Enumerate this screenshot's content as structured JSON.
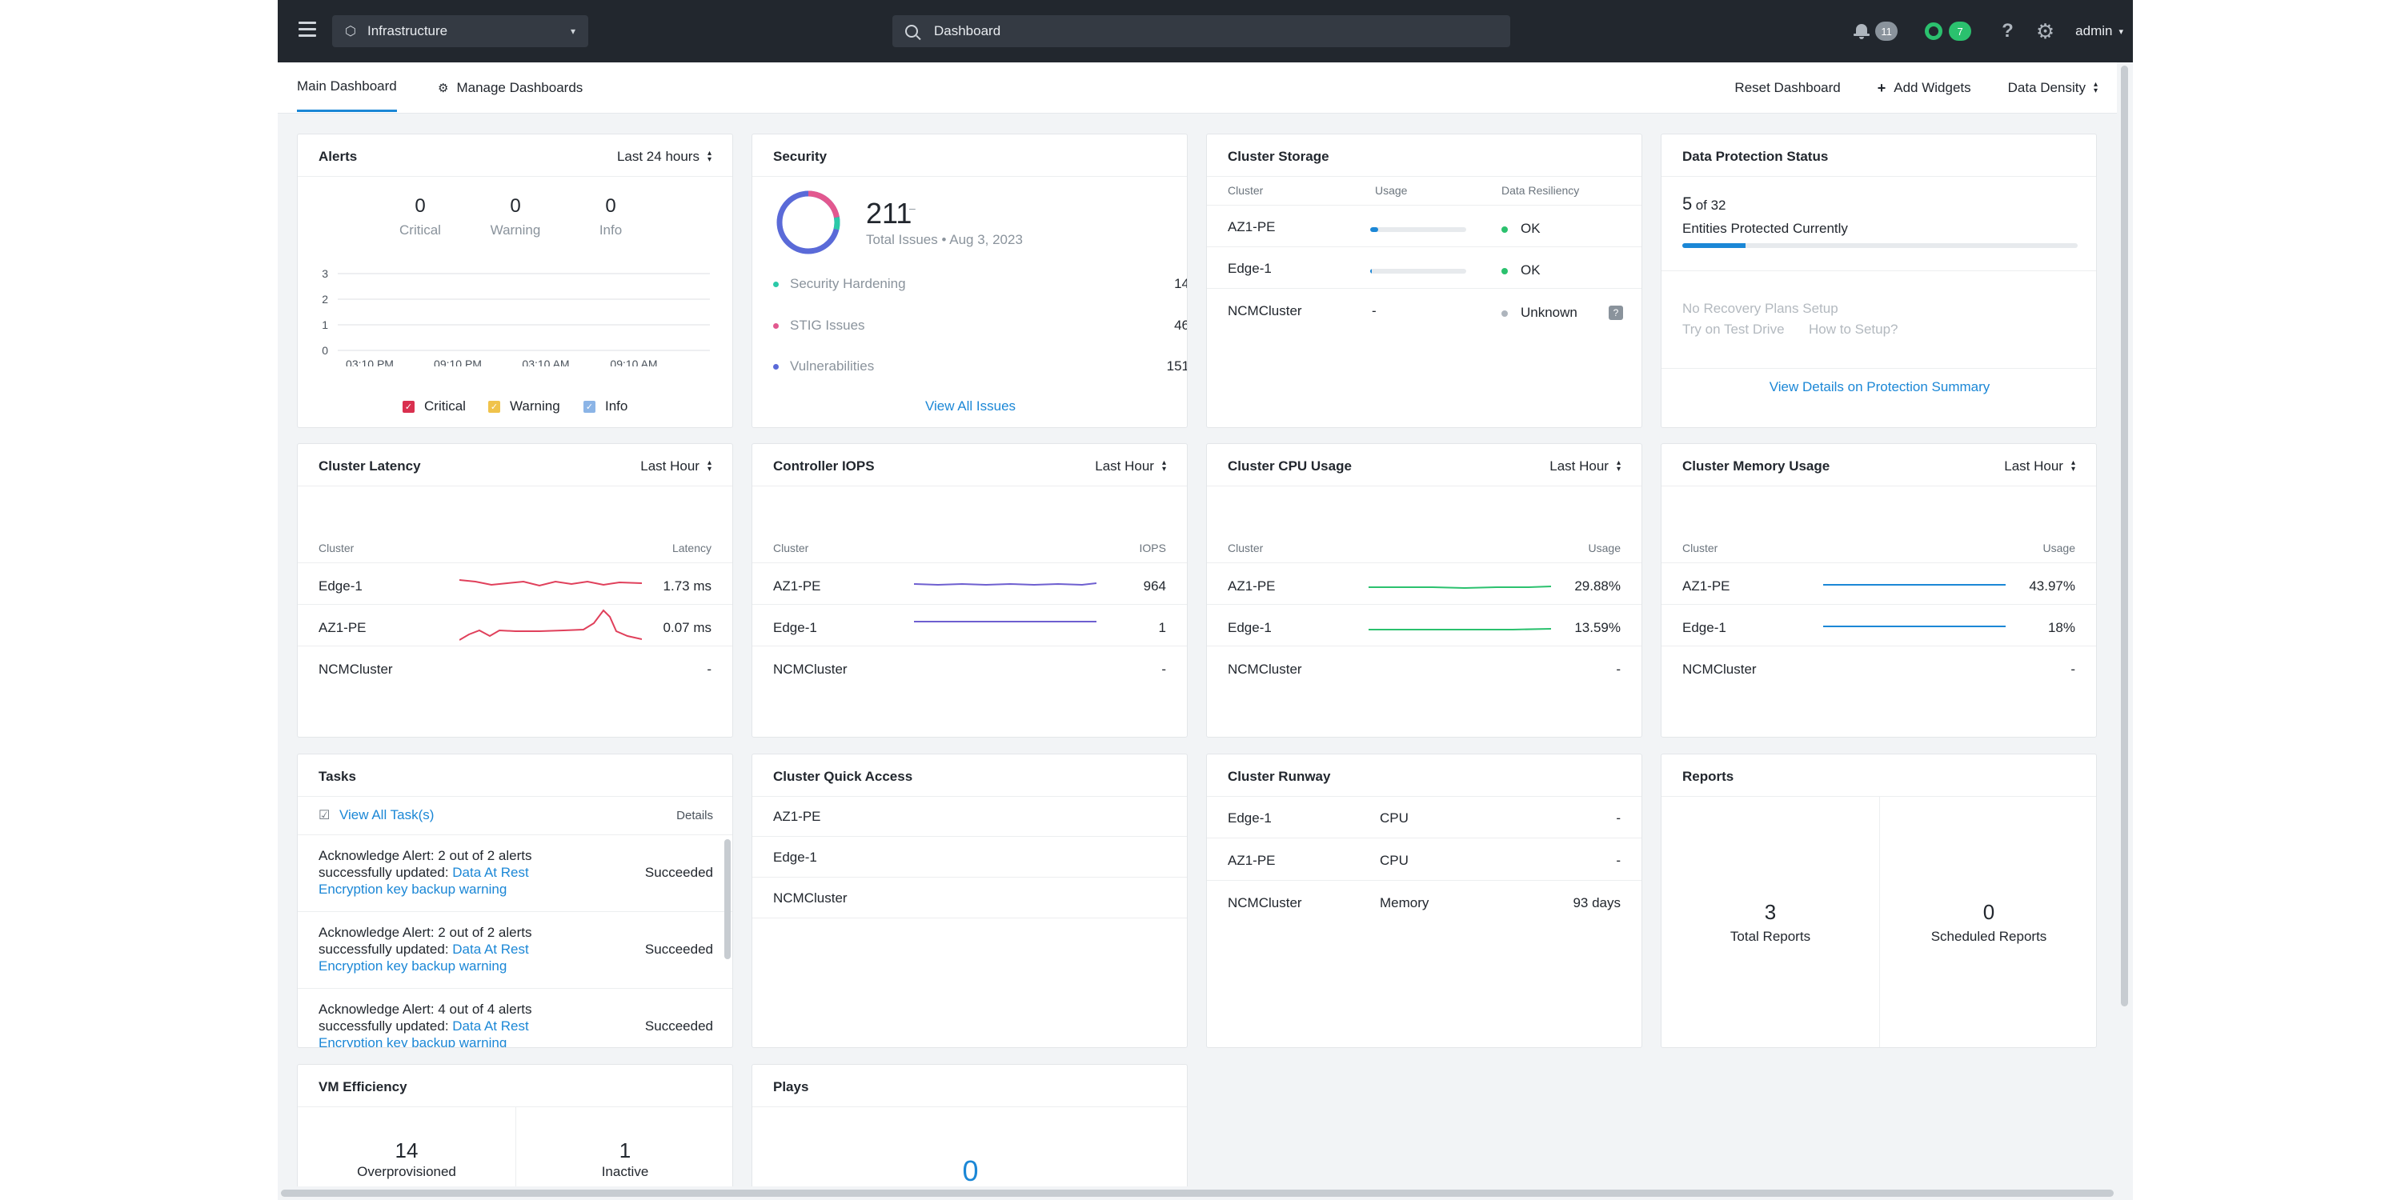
{
  "topbar": {
    "app_name": "Infrastructure",
    "search_value": "Dashboard",
    "alerts_count": "11",
    "tasks_count": "7",
    "help": "?",
    "user": "admin"
  },
  "tabs": {
    "main": "Main Dashboard",
    "manage": "Manage Dashboards"
  },
  "actions": {
    "reset": "Reset Dashboard",
    "add": "Add Widgets",
    "density": "Data Density"
  },
  "alerts": {
    "title": "Alerts",
    "range": "Last 24 hours",
    "critical": {
      "value": "0",
      "label": "Critical"
    },
    "warning": {
      "value": "0",
      "label": "Warning"
    },
    "info": {
      "value": "0",
      "label": "Info"
    },
    "chart_data": {
      "type": "line",
      "x": [
        "03:10 PM",
        "09:10 PM",
        "03:10 AM",
        "09:10 AM"
      ],
      "y_ticks": [
        "3",
        "2",
        "1",
        "0"
      ],
      "series": [
        {
          "name": "Critical",
          "values": [
            0,
            0,
            0,
            0
          ],
          "color": "#d9304f"
        },
        {
          "name": "Warning",
          "values": [
            0,
            0,
            0,
            0
          ],
          "color": "#f0c34b"
        },
        {
          "name": "Info",
          "values": [
            0,
            0,
            0,
            0
          ],
          "color": "#8bb4e6"
        }
      ],
      "ylim": [
        0,
        3
      ]
    },
    "legend": [
      "Critical",
      "Warning",
      "Info"
    ]
  },
  "security": {
    "title": "Security",
    "total": "211",
    "total_caption": "Total Issues • Aug 3, 2023",
    "rows": [
      {
        "label": "Security Hardening",
        "value": "14",
        "color": "#2bc9a8"
      },
      {
        "label": "STIG Issues",
        "value": "46",
        "color": "#e2588f"
      },
      {
        "label": "Vulnerabilities",
        "value": "151",
        "color": "#5a6ad8"
      }
    ],
    "link": "View All Issues"
  },
  "storage": {
    "title": "Cluster Storage",
    "headers": [
      "Cluster",
      "Usage",
      "Data Resiliency"
    ],
    "rows": [
      {
        "cluster": "AZ1-PE",
        "usage": 0.08,
        "status": "OK",
        "color": "#2bc16e"
      },
      {
        "cluster": "Edge-1",
        "usage": 0.01,
        "status": "OK",
        "color": "#2bc16e"
      },
      {
        "cluster": "NCMCluster",
        "usage_text": "-",
        "status": "Unknown",
        "color": "#aeb5bd"
      }
    ],
    "help": "?"
  },
  "protection": {
    "title": "Data Protection Status",
    "count": "5",
    "of_total": "of 32",
    "caption": "Entities Protected Currently",
    "fraction": 0.16,
    "no_plans": "No Recovery Plans Setup",
    "try": "Try on Test Drive",
    "how": "How to Setup?",
    "link": "View Details on Protection Summary"
  },
  "latency": {
    "title": "Cluster Latency",
    "range": "Last Hour",
    "headers": [
      "Cluster",
      "Latency"
    ],
    "rows": [
      {
        "cluster": "Edge-1",
        "value": "1.73 ms"
      },
      {
        "cluster": "AZ1-PE",
        "value": "0.07 ms"
      },
      {
        "cluster": "NCMCluster",
        "value": "-"
      }
    ]
  },
  "iops": {
    "title": "Controller IOPS",
    "range": "Last Hour",
    "headers": [
      "Cluster",
      "IOPS"
    ],
    "rows": [
      {
        "cluster": "AZ1-PE",
        "value": "964"
      },
      {
        "cluster": "Edge-1",
        "value": "1"
      },
      {
        "cluster": "NCMCluster",
        "value": "-"
      }
    ]
  },
  "cpu": {
    "title": "Cluster CPU Usage",
    "range": "Last Hour",
    "headers": [
      "Cluster",
      "Usage"
    ],
    "rows": [
      {
        "cluster": "AZ1-PE",
        "value": "29.88%"
      },
      {
        "cluster": "Edge-1",
        "value": "13.59%"
      },
      {
        "cluster": "NCMCluster",
        "value": "-"
      }
    ]
  },
  "memory": {
    "title": "Cluster Memory Usage",
    "range": "Last Hour",
    "headers": [
      "Cluster",
      "Usage"
    ],
    "rows": [
      {
        "cluster": "AZ1-PE",
        "value": "43.97%"
      },
      {
        "cluster": "Edge-1",
        "value": "18%"
      },
      {
        "cluster": "NCMCluster",
        "value": "-"
      }
    ]
  },
  "tasks": {
    "title": "Tasks",
    "view_all": "View All Task(s)",
    "details": "Details",
    "items": [
      {
        "text": "Acknowledge Alert: 2 out of 2 alerts successfully updated: ",
        "link": "Data At Rest Encryption key backup warning",
        "status": "Succeeded"
      },
      {
        "text": "Acknowledge Alert: 2 out of 2 alerts successfully updated: ",
        "link": "Data At Rest Encryption key backup warning",
        "status": "Succeeded"
      },
      {
        "text": "Acknowledge Alert: 4 out of 4 alerts successfully updated: ",
        "link": "Data At Rest Encryption key backup warning",
        "status": "Succeeded"
      }
    ]
  },
  "quick_access": {
    "title": "Cluster Quick Access",
    "items": [
      "AZ1-PE",
      "Edge-1",
      "NCMCluster"
    ]
  },
  "runway": {
    "title": "Cluster Runway",
    "rows": [
      {
        "cluster": "Edge-1",
        "resource": "CPU",
        "value": "-"
      },
      {
        "cluster": "AZ1-PE",
        "resource": "CPU",
        "value": "-"
      },
      {
        "cluster": "NCMCluster",
        "resource": "Memory",
        "value": "93 days"
      }
    ]
  },
  "reports": {
    "title": "Reports",
    "total": {
      "value": "3",
      "label": "Total Reports"
    },
    "scheduled": {
      "value": "0",
      "label": "Scheduled Reports"
    }
  },
  "vm_efficiency": {
    "title": "VM Efficiency",
    "over": {
      "value": "14",
      "label": "Overprovisioned"
    },
    "inactive": {
      "value": "1",
      "label": "Inactive"
    }
  },
  "plays": {
    "title": "Plays",
    "value": "0"
  }
}
